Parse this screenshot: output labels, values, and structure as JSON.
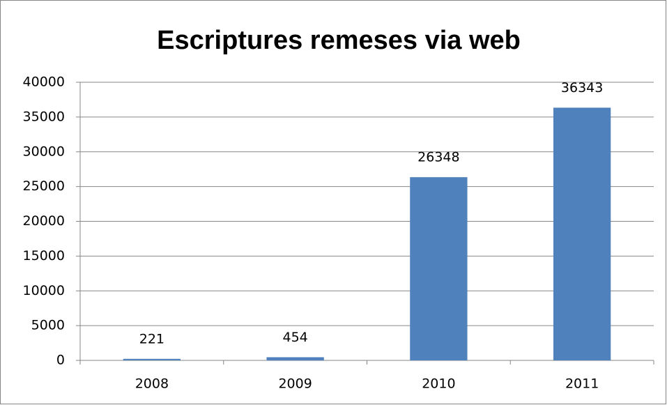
{
  "chart_data": {
    "type": "bar",
    "title": "Escriptures remeses via web",
    "categories": [
      "2008",
      "2009",
      "2010",
      "2011"
    ],
    "values": [
      221,
      454,
      26348,
      36343
    ],
    "color": "#4f81bd",
    "ylim": [
      0,
      40000
    ],
    "yticks": [
      0,
      5000,
      10000,
      15000,
      20000,
      25000,
      30000,
      35000,
      40000
    ],
    "grid": true
  }
}
